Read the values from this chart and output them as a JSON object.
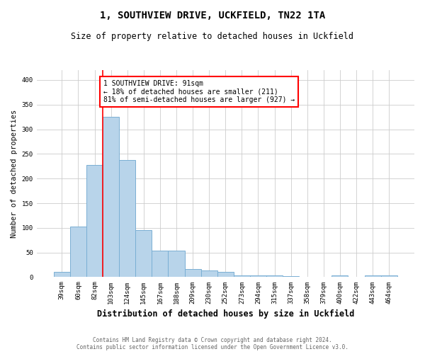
{
  "title": "1, SOUTHVIEW DRIVE, UCKFIELD, TN22 1TA",
  "subtitle": "Size of property relative to detached houses in Uckfield",
  "xlabel": "Distribution of detached houses by size in Uckfield",
  "ylabel": "Number of detached properties",
  "categories": [
    "39sqm",
    "60sqm",
    "82sqm",
    "103sqm",
    "124sqm",
    "145sqm",
    "167sqm",
    "188sqm",
    "209sqm",
    "230sqm",
    "252sqm",
    "273sqm",
    "294sqm",
    "315sqm",
    "337sqm",
    "358sqm",
    "379sqm",
    "400sqm",
    "422sqm",
    "443sqm",
    "464sqm"
  ],
  "values": [
    10,
    102,
    228,
    325,
    238,
    96,
    54,
    54,
    16,
    14,
    10,
    4,
    4,
    3,
    2,
    0,
    0,
    3,
    0,
    3,
    3
  ],
  "bar_color": "#b8d4ea",
  "bar_edge_color": "#7aafd4",
  "red_line_x": 2.5,
  "annotation_text": "1 SOUTHVIEW DRIVE: 91sqm\n← 18% of detached houses are smaller (211)\n81% of semi-detached houses are larger (927) →",
  "footer_line1": "Contains HM Land Registry data © Crown copyright and database right 2024.",
  "footer_line2": "Contains public sector information licensed under the Open Government Licence v3.0.",
  "ylim": [
    0,
    420
  ],
  "yticks": [
    0,
    50,
    100,
    150,
    200,
    250,
    300,
    350,
    400
  ],
  "background_color": "#ffffff",
  "grid_color": "#cccccc",
  "title_fontsize": 10,
  "subtitle_fontsize": 8.5,
  "xlabel_fontsize": 8.5,
  "ylabel_fontsize": 7.5,
  "tick_fontsize": 6.5,
  "annotation_fontsize": 7,
  "footer_fontsize": 5.5
}
